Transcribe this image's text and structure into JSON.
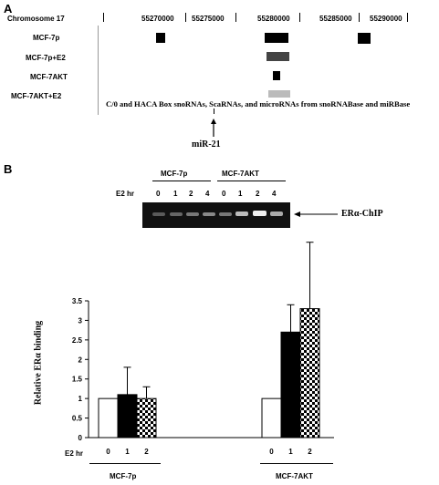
{
  "panel_a": {
    "label": "A",
    "chromosome_label": "Chromosome 17",
    "coords": [
      "55270000",
      "55275000",
      "55280000",
      "55285000",
      "55290000"
    ],
    "tracks": [
      "MCF-7p",
      "MCF-7p+E2",
      "MCF-7AKT",
      "MCF-7AKT+E2"
    ],
    "annotation": "C/0 and HACA Box snoRNAs, ScaRNAs, and microRNAs from snoRNABase and miRBase",
    "mirna_label": "miR-21"
  },
  "panel_b": {
    "label": "B",
    "gel": {
      "group_labels": [
        "MCF-7p",
        "MCF-7AKT"
      ],
      "e2_label": "E2 hr",
      "timepoints_left": [
        "0",
        "1",
        "2",
        "4"
      ],
      "timepoints_right": [
        "0",
        "1",
        "2",
        "4"
      ],
      "band_label": "ERα-ChIP"
    },
    "bottom": {
      "e2_label": "E2 hr",
      "groups": [
        "MCF-7p",
        "MCF-7AKT"
      ]
    }
  },
  "chart_data": {
    "type": "bar",
    "ylabel": "Relative ERα binding",
    "ylim": [
      0,
      3.5
    ],
    "yticks": [
      "0",
      "0.5",
      "1",
      "1.5",
      "2",
      "2.5",
      "3",
      "3.5"
    ],
    "categories": [
      "MCF-7p",
      "MCF-7AKT"
    ],
    "x_tick_labels": [
      "0",
      "1",
      "2"
    ],
    "series": [
      {
        "values": [
          1.0,
          1.0
        ],
        "errors": [
          0,
          0
        ],
        "fill": "white"
      },
      {
        "values": [
          1.1,
          2.7
        ],
        "errors": [
          0.7,
          0.7
        ],
        "fill": "black"
      },
      {
        "values": [
          1.0,
          3.3
        ],
        "errors": [
          0.3,
          1.7
        ],
        "fill": "checker"
      }
    ]
  }
}
